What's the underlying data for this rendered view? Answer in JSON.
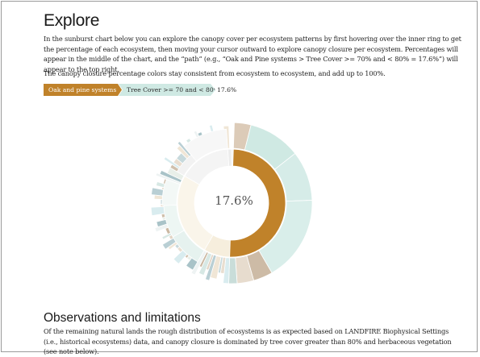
{
  "heading": "Explore",
  "intro_paragraph": "In the sunburst chart below you can explore the canopy cover per ecosystem patterns by first hovering over the inner ring to get the percentage of each ecosystem, then moving your cursor outward to explore canopy closure per ecosystem. Percentages will appear in the middle of the chart, and the “path” (e.g., “Oak and Pine systems > Tree Cover >= 70% and < 80% = 17.6%”) will appear to the top right.",
  "color_paragraph": "The canopy closure percentage colors stay consistent from ecosystem to ecosystem, and add up to 100%.",
  "breadcrumb": {
    "level1": "Oak and pine systems",
    "level2": "Tree Cover >= 70 and < 80%",
    "percentage": "17.6%"
  },
  "center_label": "17.6%",
  "observations_heading": "Observations and limitations",
  "observations_paragraph": "Of the remaining natural lands the rough distribution of ecosystems is as expected based on LANDFIRE Biophysical Settings (i.e., historical ecosystems) data, and canopy closure is dominated by tree cover greater than 80% and herbaceous vegetation (see note below).",
  "colors": {
    "oak_pine_highlight": "#c0822a",
    "tree_cover_high": "#cfe9e3",
    "inner_cream": "#f6eedd",
    "light_gray": "#e6e6e6"
  }
}
